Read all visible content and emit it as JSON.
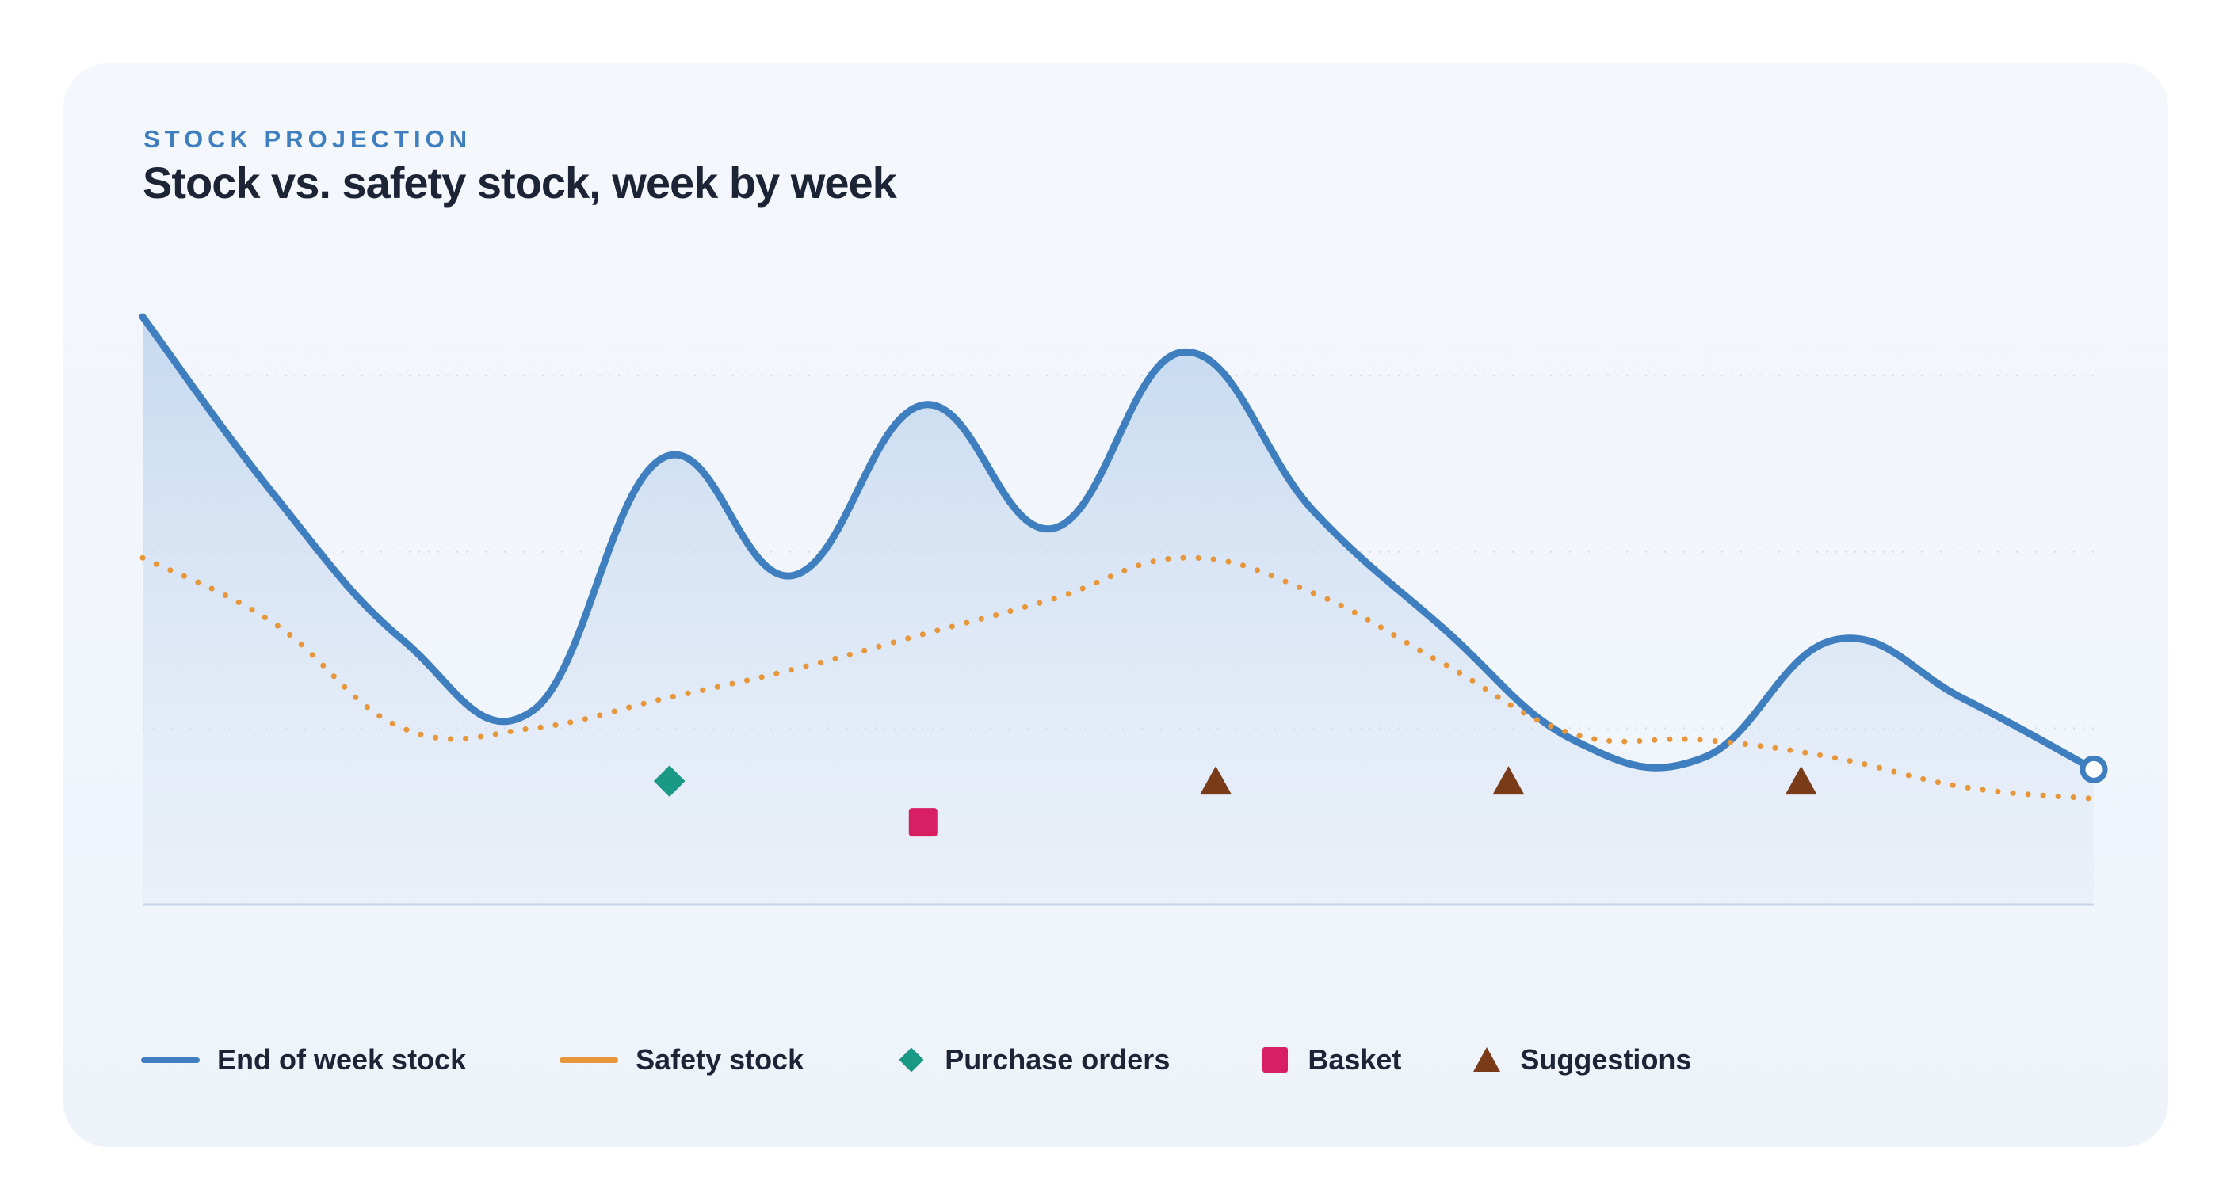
{
  "header": {
    "eyebrow": "STOCK PROJECTION",
    "title": "Stock vs. safety stock, week by week"
  },
  "colors": {
    "stock": "#3f7fbf",
    "safety": "#e8963a",
    "purchase_orders": "#1a9987",
    "basket": "#d81f64",
    "suggestions": "#7a3b19",
    "grid": "#d5dde8",
    "axis": "#c7d3e6"
  },
  "legend": {
    "stock": "End of week stock",
    "safety": "Safety stock",
    "purchase_orders": "Purchase orders",
    "basket": "Basket",
    "suggestions": "Suggestions"
  },
  "chart_data": {
    "type": "line",
    "title": "Stock vs. safety stock, week by week",
    "xlabel": "",
    "ylabel": "",
    "x": [
      0,
      1,
      2,
      3,
      4,
      5,
      6,
      7,
      8,
      9,
      10,
      11,
      12,
      13,
      14,
      15
    ],
    "ylim": [
      0,
      100
    ],
    "grid_values": [
      30,
      60,
      90
    ],
    "grid": true,
    "legend_position": "bottom",
    "series": [
      {
        "name": "End of week stock",
        "style": "solid-line-area",
        "values": [
          100,
          70,
          45,
          33,
          76,
          56,
          85,
          64,
          94,
          67,
          47,
          28,
          25,
          45,
          35,
          23
        ]
      },
      {
        "name": "Safety stock",
        "style": "dotted-line",
        "values": [
          59,
          48,
          30,
          30,
          35,
          40,
          46,
          52,
          59,
          53,
          41,
          29,
          28,
          25,
          20,
          18
        ]
      }
    ],
    "markers": [
      {
        "series": "Purchase orders",
        "shape": "diamond",
        "x": 4.05,
        "value": 21
      },
      {
        "series": "Basket",
        "shape": "square",
        "x": 6.0,
        "value": 14
      },
      {
        "series": "Suggestions",
        "shape": "triangle",
        "x": 8.25,
        "value": 21
      },
      {
        "series": "Suggestions",
        "shape": "triangle",
        "x": 10.5,
        "value": 21
      },
      {
        "series": "Suggestions",
        "shape": "triangle",
        "x": 12.75,
        "value": 21
      }
    ]
  }
}
